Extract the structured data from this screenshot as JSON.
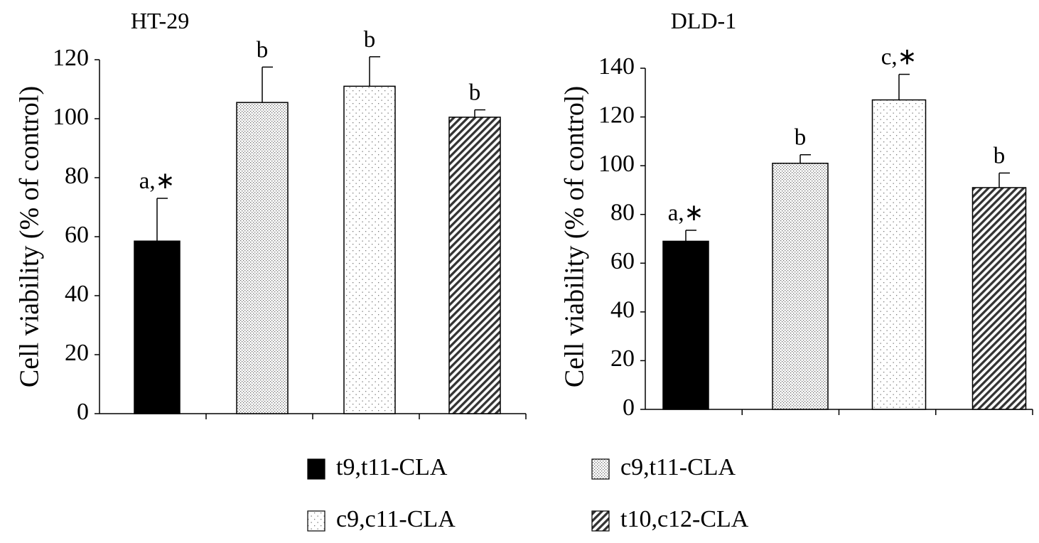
{
  "chart_data": [
    {
      "type": "bar",
      "title": "HT-29",
      "ylabel": "Cell viability (% of control)",
      "xlabel": "",
      "ylim": [
        0,
        120
      ],
      "yticks": [
        0,
        20,
        40,
        60,
        80,
        100,
        120
      ],
      "categories": [
        "t9,t11-CLA",
        "c9,t11-CLA",
        "c9,c11-CLA",
        "t10,c12-CLA"
      ],
      "values": [
        58.5,
        105.5,
        111,
        100.5
      ],
      "errors": [
        14.5,
        12,
        10,
        2.5
      ],
      "annotations": [
        "a,∗",
        "b",
        "b",
        "b"
      ],
      "grid": false
    },
    {
      "type": "bar",
      "title": "DLD-1",
      "ylabel": "Cell viability (% of control)",
      "xlabel": "",
      "ylim": [
        0,
        140
      ],
      "yticks": [
        0,
        20,
        40,
        60,
        80,
        100,
        120,
        140
      ],
      "categories": [
        "t9,t11-CLA",
        "c9,t11-CLA",
        "c9,c11-CLA",
        "t10,c12-CLA"
      ],
      "values": [
        69,
        101,
        127,
        91
      ],
      "errors": [
        4.5,
        3.5,
        10.5,
        6
      ],
      "annotations": [
        "a,∗",
        "b",
        "c,∗",
        "b"
      ],
      "grid": false
    }
  ],
  "legend": {
    "position": "bottom",
    "items": [
      {
        "label": "t9,t11-CLA",
        "pattern": "solid-black"
      },
      {
        "label": "c9,t11-CLA",
        "pattern": "dense-dots"
      },
      {
        "label": "c9,c11-CLA",
        "pattern": "sparse-dots"
      },
      {
        "label": "t10,c12-CLA",
        "pattern": "diagonal-hatch"
      }
    ]
  }
}
